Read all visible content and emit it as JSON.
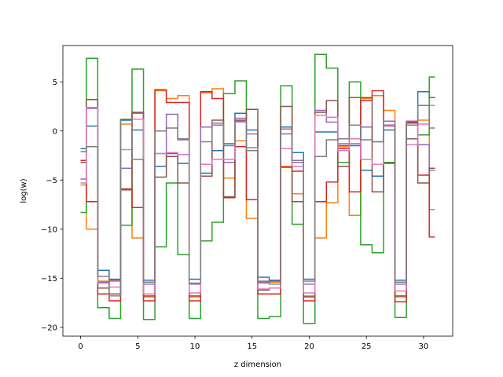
{
  "chart_data": {
    "type": "line",
    "step": "mid",
    "xlabel": "z dimension",
    "ylabel": "log(w)",
    "xlim": [
      -1.55,
      32.55
    ],
    "ylim": [
      -20.9,
      8.7
    ],
    "xticks": [
      0,
      5,
      10,
      15,
      20,
      25,
      30
    ],
    "yticks": [
      -20,
      -15,
      -10,
      -5,
      0,
      5
    ],
    "grid": false,
    "x": [
      0,
      1,
      2,
      3,
      4,
      5,
      6,
      7,
      8,
      9,
      10,
      11,
      12,
      13,
      14,
      15,
      16,
      17,
      18,
      19,
      20,
      21,
      22,
      23,
      24,
      25,
      26,
      27,
      28,
      29,
      30,
      31
    ],
    "series": [
      {
        "color": "#1f77b4",
        "values": [
          -1.8,
          0.5,
          -14.2,
          -15.1,
          1.1,
          0.1,
          -15.2,
          -3.6,
          -2.3,
          -3.3,
          -15.1,
          -4.3,
          -2.0,
          -1.3,
          1.8,
          0.1,
          -14.9,
          -15.2,
          0.4,
          -2.2,
          -15.1,
          -0.1,
          -0.1,
          -1.5,
          -1.5,
          -4.0,
          -4.6,
          0.1,
          -15.2,
          0.8,
          4.0,
          3.4
        ]
      },
      {
        "color": "#ff7f0e",
        "values": [
          -5.5,
          -10.0,
          -15.3,
          -15.3,
          0.7,
          -10.9,
          -16.9,
          4.1,
          3.3,
          3.6,
          -16.9,
          3.9,
          4.3,
          -4.8,
          -1.0,
          -8.9,
          -15.5,
          -15.4,
          -3.6,
          -6.4,
          -16.8,
          -10.9,
          -7.3,
          -1.6,
          -8.6,
          3.3,
          3.6,
          2.1,
          -16.9,
          0.9,
          1.1,
          -8.0
        ]
      },
      {
        "color": "#2ca02c",
        "values": [
          -8.3,
          7.4,
          -18.0,
          -19.1,
          -9.6,
          6.3,
          -19.2,
          -11.8,
          -5.3,
          -12.6,
          -19.1,
          -11.2,
          -9.3,
          3.8,
          5.1,
          -1.7,
          -19.1,
          -18.9,
          4.6,
          -9.5,
          -19.6,
          7.8,
          6.4,
          -3.2,
          5.0,
          -11.6,
          -12.4,
          -3.2,
          -19.0,
          0.6,
          -0.4,
          5.5
        ]
      },
      {
        "color": "#d62728",
        "values": [
          -3.0,
          -7.2,
          -16.6,
          -17.3,
          -5.9,
          -7.8,
          -17.3,
          4.2,
          2.9,
          2.9,
          -17.3,
          4.0,
          3.3,
          -6.8,
          -1.6,
          -7.0,
          -16.6,
          -16.6,
          -3.7,
          -4.1,
          -17.3,
          -7.2,
          -5.2,
          -1.8,
          -6.2,
          3.1,
          4.1,
          0.5,
          -17.4,
          0.9,
          -4.5,
          -10.8
        ]
      },
      {
        "color": "#9467bd",
        "values": [
          -4.9,
          2.3,
          -15.4,
          -15.2,
          -3.8,
          1.8,
          -15.6,
          -2.3,
          1.7,
          -0.9,
          -15.6,
          0.4,
          0.6,
          -3.2,
          1.3,
          -0.3,
          -15.4,
          -15.3,
          0.2,
          -3.2,
          -15.6,
          2.1,
          0.9,
          -1.3,
          -1.3,
          0.4,
          -1.1,
          1.0,
          -15.6,
          1.0,
          -1.4,
          -4.0
        ]
      },
      {
        "color": "#8c564b",
        "values": [
          -3.2,
          3.2,
          -16.0,
          -16.6,
          -6.0,
          1.9,
          -16.8,
          -4.7,
          -2.6,
          -5.3,
          -16.8,
          -4.6,
          1.1,
          -6.7,
          1.1,
          2.2,
          -16.2,
          -16.0,
          2.5,
          -7.2,
          -16.9,
          1.9,
          3.1,
          -3.6,
          3.4,
          3.4,
          -6.2,
          -3.3,
          -16.8,
          -0.8,
          -5.3,
          -3.8
        ]
      },
      {
        "color": "#e377c2",
        "values": [
          -5.3,
          2.4,
          -15.5,
          -15.9,
          -1.9,
          1.2,
          -16.6,
          -2.3,
          -2.2,
          -2.4,
          -16.5,
          -3.4,
          -2.9,
          -2.9,
          0.9,
          -1.7,
          -16.1,
          -16.0,
          -1.8,
          -3.6,
          -16.5,
          1.6,
          1.4,
          -2.0,
          -0.8,
          -2.9,
          -3.4,
          0.5,
          -16.3,
          -1.4,
          0.7,
          2.6
        ]
      },
      {
        "color": "#7f7f7f",
        "values": [
          -2.1,
          -1.6,
          -14.8,
          -16.8,
          1.2,
          -2.9,
          -15.4,
          0.0,
          0.3,
          -0.8,
          -15.5,
          -1.1,
          0.8,
          -1.5,
          1.0,
          -2.0,
          -15.3,
          -15.6,
          -0.3,
          -3.0,
          -15.3,
          -2.6,
          -0.9,
          -0.8,
          0.6,
          -0.9,
          -1.1,
          0.6,
          -15.4,
          0.6,
          2.6,
          0.3
        ]
      }
    ]
  }
}
